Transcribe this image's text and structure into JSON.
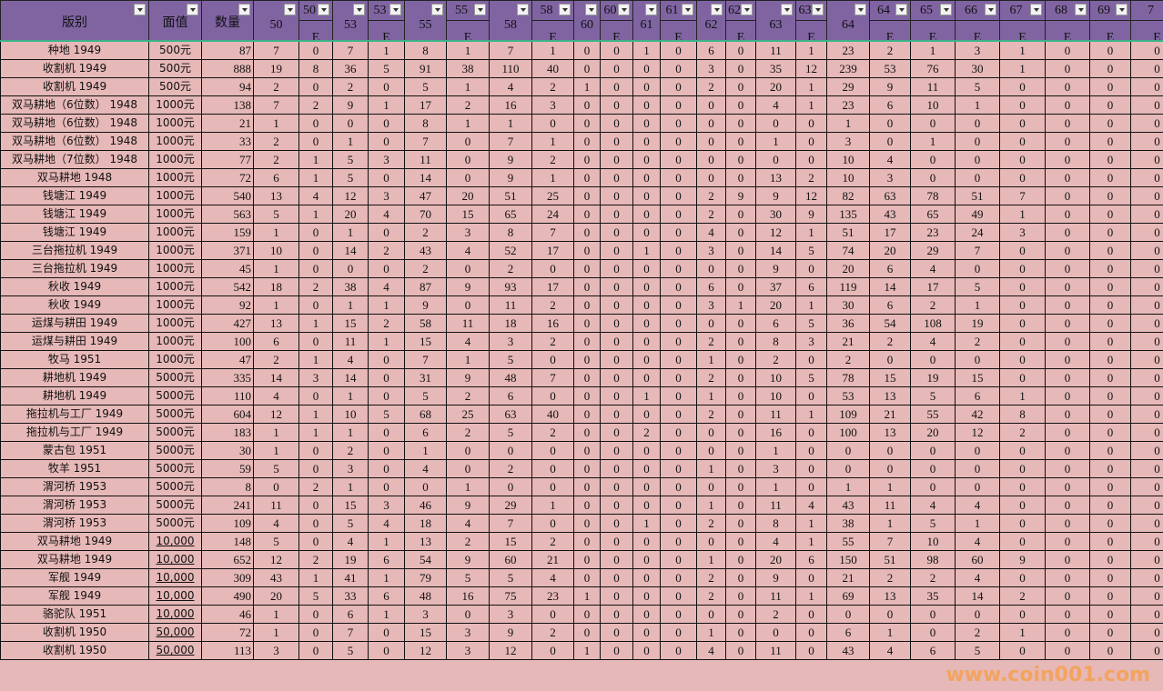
{
  "columns": {
    "name": "版别",
    "face": "面值",
    "qty": "数量",
    "pairs": [
      {
        "top": "50",
        "sub": "E"
      },
      {
        "top": "53",
        "sub": "E"
      },
      {
        "top": "55",
        "sub": "E"
      },
      {
        "top": "58",
        "sub": "E"
      },
      {
        "top": "60",
        "sub": "E"
      },
      {
        "top": "61",
        "sub": "E"
      },
      {
        "top": "62",
        "sub": "E"
      },
      {
        "top": "63",
        "sub": "E"
      },
      {
        "top": "64",
        "sub": "E"
      }
    ],
    "singles": [
      {
        "top": "65",
        "sub": "E"
      },
      {
        "top": "66",
        "sub": "E"
      },
      {
        "top": "67",
        "sub": "E"
      },
      {
        "top": "68",
        "sub": "E"
      },
      {
        "top": "69",
        "sub": "E"
      },
      {
        "top": "7",
        "sub": "E"
      }
    ]
  },
  "rows": [
    [
      "种地 1949",
      "500元",
      "87",
      "7",
      "0",
      "7",
      "1",
      "8",
      "1",
      "7",
      "1",
      "0",
      "0",
      "1",
      "0",
      "6",
      "0",
      "11",
      "1",
      "23",
      "2",
      "1",
      "3",
      "1",
      "0",
      "0",
      "0"
    ],
    [
      "收割机 1949",
      "500元",
      "888",
      "19",
      "8",
      "36",
      "5",
      "91",
      "38",
      "110",
      "40",
      "0",
      "0",
      "0",
      "0",
      "3",
      "0",
      "35",
      "12",
      "239",
      "53",
      "76",
      "30",
      "1",
      "0",
      "0",
      "0"
    ],
    [
      "收割机 1949",
      "500元",
      "94",
      "2",
      "0",
      "2",
      "0",
      "5",
      "1",
      "4",
      "2",
      "1",
      "0",
      "0",
      "0",
      "2",
      "0",
      "20",
      "1",
      "29",
      "9",
      "11",
      "5",
      "0",
      "0",
      "0",
      "0"
    ],
    [
      "双马耕地（6位数） 1948",
      "1000元",
      "138",
      "7",
      "2",
      "9",
      "1",
      "17",
      "2",
      "16",
      "3",
      "0",
      "0",
      "0",
      "0",
      "0",
      "0",
      "4",
      "1",
      "23",
      "6",
      "10",
      "1",
      "0",
      "0",
      "0",
      "0"
    ],
    [
      "双马耕地（6位数） 1948",
      "1000元",
      "21",
      "1",
      "0",
      "0",
      "0",
      "8",
      "1",
      "1",
      "0",
      "0",
      "0",
      "0",
      "0",
      "0",
      "0",
      "0",
      "0",
      "1",
      "0",
      "0",
      "0",
      "0",
      "0",
      "0",
      "0"
    ],
    [
      "双马耕地（6位数） 1948",
      "1000元",
      "33",
      "2",
      "0",
      "1",
      "0",
      "7",
      "0",
      "7",
      "1",
      "0",
      "0",
      "0",
      "0",
      "0",
      "0",
      "1",
      "0",
      "3",
      "0",
      "1",
      "0",
      "0",
      "0",
      "0",
      "0"
    ],
    [
      "双马耕地（7位数） 1948",
      "1000元",
      "77",
      "2",
      "1",
      "5",
      "3",
      "11",
      "0",
      "9",
      "2",
      "0",
      "0",
      "0",
      "0",
      "0",
      "0",
      "0",
      "0",
      "10",
      "4",
      "0",
      "0",
      "0",
      "0",
      "0",
      "0"
    ],
    [
      "双马耕地 1948",
      "1000元",
      "72",
      "6",
      "1",
      "5",
      "0",
      "14",
      "0",
      "9",
      "1",
      "0",
      "0",
      "0",
      "0",
      "0",
      "0",
      "13",
      "2",
      "10",
      "3",
      "0",
      "0",
      "0",
      "0",
      "0",
      "0"
    ],
    [
      "钱塘江 1949",
      "1000元",
      "540",
      "13",
      "4",
      "12",
      "3",
      "47",
      "20",
      "51",
      "25",
      "0",
      "0",
      "0",
      "0",
      "2",
      "9",
      "9",
      "12",
      "82",
      "63",
      "78",
      "51",
      "7",
      "0",
      "0",
      "0"
    ],
    [
      "钱塘江 1949",
      "1000元",
      "563",
      "5",
      "1",
      "20",
      "4",
      "70",
      "15",
      "65",
      "24",
      "0",
      "0",
      "0",
      "0",
      "2",
      "0",
      "30",
      "9",
      "135",
      "43",
      "65",
      "49",
      "1",
      "0",
      "0",
      "0"
    ],
    [
      "钱塘江 1949",
      "1000元",
      "159",
      "1",
      "0",
      "1",
      "0",
      "2",
      "3",
      "8",
      "7",
      "0",
      "0",
      "0",
      "0",
      "4",
      "0",
      "12",
      "1",
      "51",
      "17",
      "23",
      "24",
      "3",
      "0",
      "0",
      "0"
    ],
    [
      "三台拖拉机 1949",
      "1000元",
      "371",
      "10",
      "0",
      "14",
      "2",
      "43",
      "4",
      "52",
      "17",
      "0",
      "0",
      "1",
      "0",
      "3",
      "0",
      "14",
      "5",
      "74",
      "20",
      "29",
      "7",
      "0",
      "0",
      "0",
      "0"
    ],
    [
      "三台拖拉机 1949",
      "1000元",
      "45",
      "1",
      "0",
      "0",
      "0",
      "2",
      "0",
      "2",
      "0",
      "0",
      "0",
      "0",
      "0",
      "0",
      "0",
      "9",
      "0",
      "20",
      "6",
      "4",
      "0",
      "0",
      "0",
      "0",
      "0"
    ],
    [
      "秋收 1949",
      "1000元",
      "542",
      "18",
      "2",
      "38",
      "4",
      "87",
      "9",
      "93",
      "17",
      "0",
      "0",
      "0",
      "0",
      "6",
      "0",
      "37",
      "6",
      "119",
      "14",
      "17",
      "5",
      "0",
      "0",
      "0",
      "0"
    ],
    [
      "秋收 1949",
      "1000元",
      "92",
      "1",
      "0",
      "1",
      "1",
      "9",
      "0",
      "11",
      "2",
      "0",
      "0",
      "0",
      "0",
      "3",
      "1",
      "20",
      "1",
      "30",
      "6",
      "2",
      "1",
      "0",
      "0",
      "0",
      "0"
    ],
    [
      "运煤与耕田 1949",
      "1000元",
      "427",
      "13",
      "1",
      "15",
      "2",
      "58",
      "11",
      "18",
      "16",
      "0",
      "0",
      "0",
      "0",
      "0",
      "0",
      "6",
      "5",
      "36",
      "54",
      "108",
      "19",
      "0",
      "0",
      "0",
      "0"
    ],
    [
      "运煤与耕田 1949",
      "1000元",
      "100",
      "6",
      "0",
      "11",
      "1",
      "15",
      "4",
      "3",
      "2",
      "0",
      "0",
      "0",
      "0",
      "2",
      "0",
      "8",
      "3",
      "21",
      "2",
      "4",
      "2",
      "0",
      "0",
      "0",
      "0"
    ],
    [
      "牧马 1951",
      "1000元",
      "47",
      "2",
      "1",
      "4",
      "0",
      "7",
      "1",
      "5",
      "0",
      "0",
      "0",
      "0",
      "0",
      "1",
      "0",
      "2",
      "0",
      "2",
      "0",
      "0",
      "0",
      "0",
      "0",
      "0",
      "0"
    ],
    [
      "耕地机 1949",
      "5000元",
      "335",
      "14",
      "3",
      "14",
      "0",
      "31",
      "9",
      "48",
      "7",
      "0",
      "0",
      "0",
      "0",
      "2",
      "0",
      "10",
      "5",
      "78",
      "15",
      "19",
      "15",
      "0",
      "0",
      "0",
      "0"
    ],
    [
      "耕地机 1949",
      "5000元",
      "110",
      "4",
      "0",
      "1",
      "0",
      "5",
      "2",
      "6",
      "0",
      "0",
      "0",
      "1",
      "0",
      "1",
      "0",
      "10",
      "0",
      "53",
      "13",
      "5",
      "6",
      "1",
      "0",
      "0",
      "0"
    ],
    [
      "拖拉机与工厂 1949",
      "5000元",
      "604",
      "12",
      "1",
      "10",
      "5",
      "68",
      "25",
      "63",
      "40",
      "0",
      "0",
      "0",
      "0",
      "2",
      "0",
      "11",
      "1",
      "109",
      "21",
      "55",
      "42",
      "8",
      "0",
      "0",
      "0"
    ],
    [
      "拖拉机与工厂 1949",
      "5000元",
      "183",
      "1",
      "1",
      "1",
      "0",
      "6",
      "2",
      "5",
      "2",
      "0",
      "0",
      "2",
      "0",
      "0",
      "0",
      "16",
      "0",
      "100",
      "13",
      "20",
      "12",
      "2",
      "0",
      "0",
      "0"
    ],
    [
      "蒙古包 1951",
      "5000元",
      "30",
      "1",
      "0",
      "2",
      "0",
      "1",
      "0",
      "0",
      "0",
      "0",
      "0",
      "0",
      "0",
      "0",
      "0",
      "1",
      "0",
      "0",
      "0",
      "0",
      "0",
      "0",
      "0",
      "0",
      "0"
    ],
    [
      "牧羊 1951",
      "5000元",
      "59",
      "5",
      "0",
      "3",
      "0",
      "4",
      "0",
      "2",
      "0",
      "0",
      "0",
      "0",
      "0",
      "1",
      "0",
      "3",
      "0",
      "0",
      "0",
      "0",
      "0",
      "0",
      "0",
      "0",
      "0"
    ],
    [
      "渭河桥 1953",
      "5000元",
      "8",
      "0",
      "2",
      "1",
      "0",
      "0",
      "1",
      "0",
      "0",
      "0",
      "0",
      "0",
      "0",
      "0",
      "0",
      "1",
      "0",
      "1",
      "1",
      "0",
      "0",
      "0",
      "0",
      "0",
      "0"
    ],
    [
      "渭河桥 1953",
      "5000元",
      "241",
      "11",
      "0",
      "15",
      "3",
      "46",
      "9",
      "29",
      "1",
      "0",
      "0",
      "0",
      "0",
      "1",
      "0",
      "11",
      "4",
      "43",
      "11",
      "4",
      "4",
      "0",
      "0",
      "0",
      "0"
    ],
    [
      "渭河桥 1953",
      "5000元",
      "109",
      "4",
      "0",
      "5",
      "4",
      "18",
      "4",
      "7",
      "0",
      "0",
      "0",
      "1",
      "0",
      "2",
      "0",
      "8",
      "1",
      "38",
      "1",
      "5",
      "1",
      "0",
      "0",
      "0",
      "0"
    ],
    [
      "双马耕地 1949",
      "10,000",
      "148",
      "5",
      "0",
      "4",
      "1",
      "13",
      "2",
      "15",
      "2",
      "0",
      "0",
      "0",
      "0",
      "0",
      "0",
      "4",
      "1",
      "55",
      "7",
      "10",
      "4",
      "0",
      "0",
      "0",
      "0"
    ],
    [
      "双马耕地 1949",
      "10,000",
      "652",
      "12",
      "2",
      "19",
      "6",
      "54",
      "9",
      "60",
      "21",
      "0",
      "0",
      "0",
      "0",
      "1",
      "0",
      "20",
      "6",
      "150",
      "51",
      "98",
      "60",
      "9",
      "0",
      "0",
      "0"
    ],
    [
      "军舰 1949",
      "10,000",
      "309",
      "43",
      "1",
      "41",
      "1",
      "79",
      "5",
      "5",
      "4",
      "0",
      "0",
      "0",
      "0",
      "2",
      "0",
      "9",
      "0",
      "21",
      "2",
      "2",
      "4",
      "0",
      "0",
      "0",
      "0"
    ],
    [
      "军舰 1949",
      "10,000",
      "490",
      "20",
      "5",
      "33",
      "6",
      "48",
      "16",
      "75",
      "23",
      "1",
      "0",
      "0",
      "0",
      "2",
      "0",
      "11",
      "1",
      "69",
      "13",
      "35",
      "14",
      "2",
      "0",
      "0",
      "0"
    ],
    [
      "骆驼队 1951",
      "10,000",
      "46",
      "1",
      "0",
      "6",
      "1",
      "3",
      "0",
      "3",
      "0",
      "0",
      "0",
      "0",
      "0",
      "0",
      "0",
      "2",
      "0",
      "0",
      "0",
      "0",
      "0",
      "0",
      "0",
      "0",
      "0"
    ],
    [
      "收割机 1950",
      "50,000",
      "72",
      "1",
      "0",
      "7",
      "0",
      "15",
      "3",
      "9",
      "2",
      "0",
      "0",
      "0",
      "0",
      "1",
      "0",
      "0",
      "0",
      "6",
      "1",
      "0",
      "2",
      "1",
      "0",
      "0",
      "0"
    ],
    [
      "收割机 1950",
      "50,000",
      "113",
      "3",
      "0",
      "5",
      "0",
      "12",
      "3",
      "12",
      "0",
      "1",
      "0",
      "0",
      "0",
      "4",
      "0",
      "11",
      "0",
      "43",
      "4",
      "6",
      "5",
      "0",
      "0",
      "0",
      "0"
    ]
  ],
  "watermark": "www.coin001.com",
  "colors": {
    "header": "#8064a2",
    "row": "#e6b8b7",
    "watermark": "#f5a04a"
  }
}
